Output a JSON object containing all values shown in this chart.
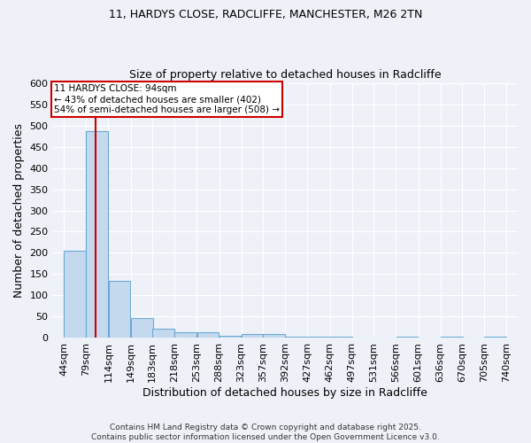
{
  "title1": "11, HARDYS CLOSE, RADCLIFFE, MANCHESTER, M26 2TN",
  "title2": "Size of property relative to detached houses in Radcliffe",
  "xlabel": "Distribution of detached houses by size in Radcliffe",
  "ylabel": "Number of detached properties",
  "bins": [
    44,
    79,
    114,
    149,
    183,
    218,
    253,
    288,
    323,
    357,
    392,
    427,
    462,
    497,
    531,
    566,
    601,
    636,
    670,
    705,
    740
  ],
  "counts": [
    205,
    487,
    135,
    46,
    22,
    14,
    13,
    5,
    9,
    9,
    4,
    3,
    2,
    1,
    1,
    4,
    1,
    2,
    1,
    4
  ],
  "bar_color": "#c5d9ee",
  "bar_edge_color": "#6aaad4",
  "red_line_x": 94,
  "annotation_text": "11 HARDYS CLOSE: 94sqm\n← 43% of detached houses are smaller (402)\n54% of semi-detached houses are larger (508) →",
  "annotation_box_color": "#ffffff",
  "annotation_box_edge_color": "#cc0000",
  "footer1": "Contains HM Land Registry data © Crown copyright and database right 2025.",
  "footer2": "Contains public sector information licensed under the Open Government Licence v3.0.",
  "bg_color": "#eef2f8",
  "grid_color": "#ffffff",
  "ylim": [
    0,
    600
  ],
  "yticks": [
    0,
    50,
    100,
    150,
    200,
    250,
    300,
    350,
    400,
    450,
    500,
    550,
    600
  ],
  "title_fontsize": 9,
  "axis_fontsize": 8,
  "footer_fontsize": 6.5
}
